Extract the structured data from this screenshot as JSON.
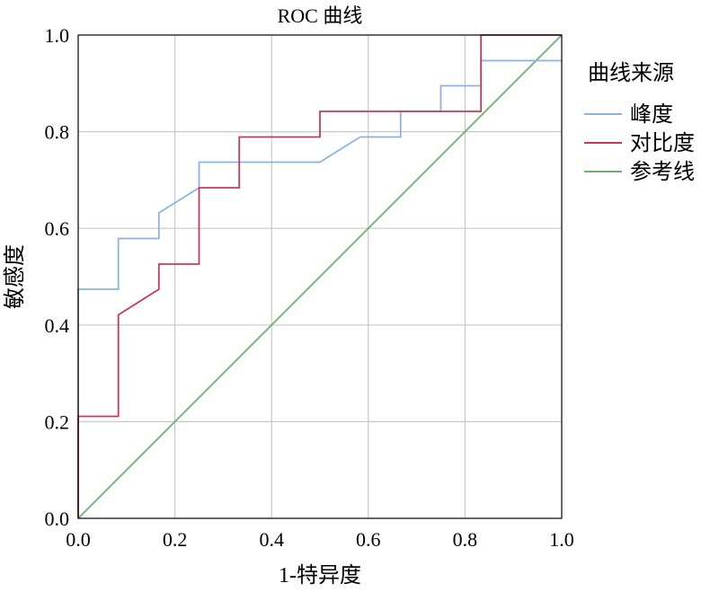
{
  "chart_data": {
    "type": "line",
    "title": "ROC 曲线",
    "xlabel": "1-特异度",
    "ylabel": "敏感度",
    "xlim": [
      0,
      1
    ],
    "ylim": [
      0,
      1
    ],
    "xticks": [
      "0.0",
      "0.2",
      "0.4",
      "0.6",
      "0.8",
      "1.0"
    ],
    "yticks": [
      "0.0",
      "0.2",
      "0.4",
      "0.6",
      "0.8",
      "1.0"
    ],
    "grid": true,
    "legend": {
      "title": "曲线来源",
      "position": "right"
    },
    "series": [
      {
        "name": "峰度",
        "color": "#8ab4e0",
        "step": true,
        "x": [
          0,
          0,
          0.083,
          0.083,
          0.167,
          0.167,
          0.25,
          0.25,
          0.5,
          0.583,
          0.667,
          0.667,
          0.75,
          0.75,
          0.833,
          0.833,
          1.0
        ],
        "y": [
          0,
          0.474,
          0.474,
          0.579,
          0.579,
          0.632,
          0.684,
          0.737,
          0.737,
          0.789,
          0.789,
          0.842,
          0.842,
          0.895,
          0.895,
          0.947,
          0.947
        ]
      },
      {
        "name": "对比度",
        "color": "#c8385e",
        "step": true,
        "x": [
          0,
          0,
          0.083,
          0.083,
          0.167,
          0.167,
          0.25,
          0.25,
          0.333,
          0.333,
          0.5,
          0.5,
          0.833,
          0.833,
          1.0
        ],
        "y": [
          0,
          0.211,
          0.211,
          0.421,
          0.474,
          0.526,
          0.526,
          0.684,
          0.684,
          0.789,
          0.789,
          0.842,
          0.842,
          1.0,
          1.0
        ]
      },
      {
        "name": "参考线",
        "color": "#6fb06f",
        "step": false,
        "x": [
          0,
          1
        ],
        "y": [
          0,
          1
        ]
      }
    ]
  }
}
